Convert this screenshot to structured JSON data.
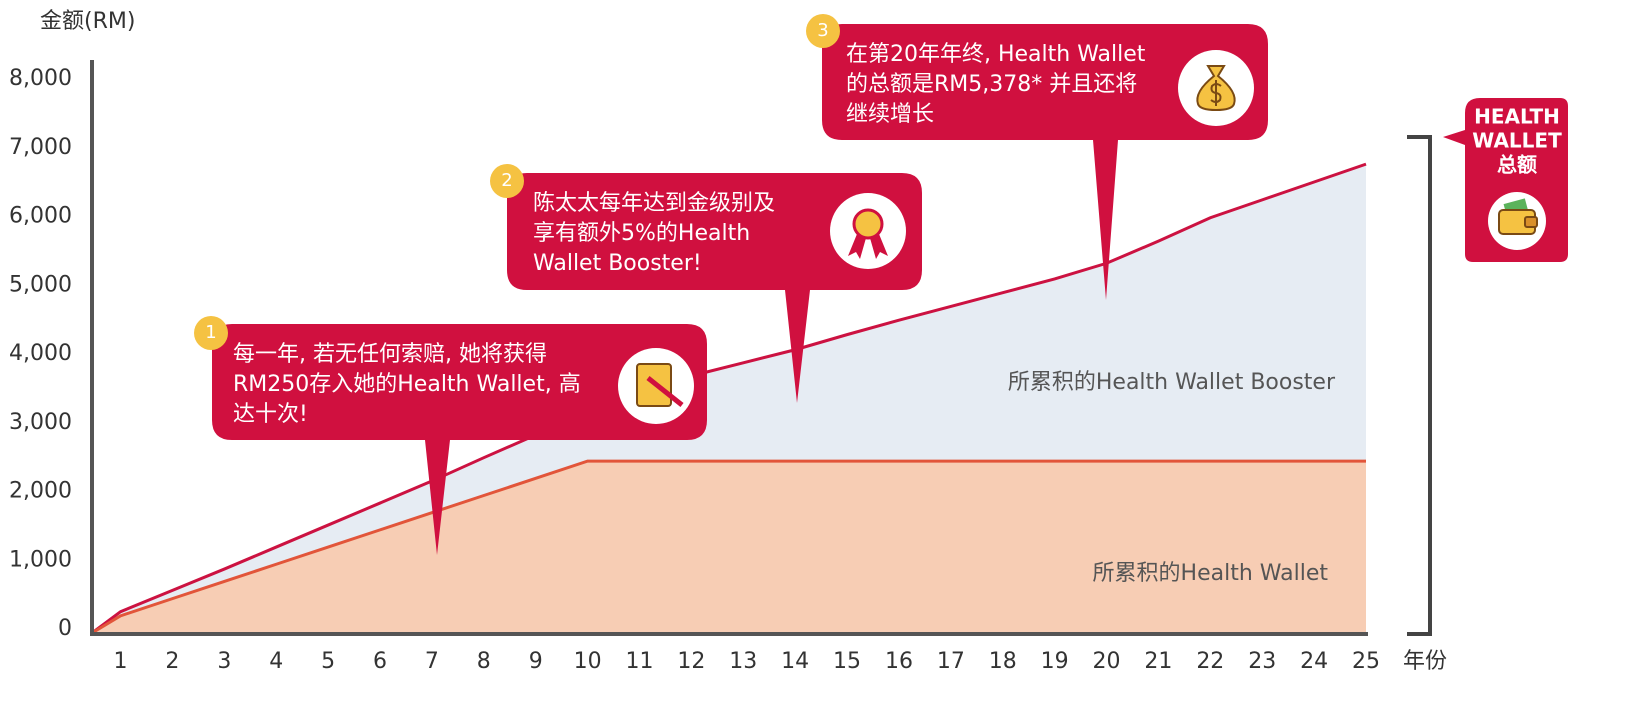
{
  "chart_data": {
    "type": "area",
    "y_label": "金额(RM)",
    "x_label": "年份",
    "xlim": [
      0.45,
      25
    ],
    "xticks": [
      1,
      2,
      3,
      4,
      5,
      6,
      7,
      8,
      9,
      10,
      11,
      12,
      13,
      14,
      15,
      16,
      17,
      18,
      19,
      20,
      21,
      22,
      23,
      24,
      25
    ],
    "ylim": [
      0,
      8000
    ],
    "yticks": [
      0,
      {
        "value": 1000,
        "label": "1,000"
      },
      {
        "value": 2000,
        "label": "2,000"
      },
      {
        "value": 3000,
        "label": "3,000"
      },
      {
        "value": 4000,
        "label": "4,000"
      },
      {
        "value": 5000,
        "label": "5,000"
      },
      {
        "value": 6000,
        "label": "6,000"
      },
      {
        "value": 7000,
        "label": "7,000"
      },
      {
        "value": 8000,
        "label": "8,000"
      }
    ],
    "x": [
      0.45,
      1,
      2,
      3,
      4,
      5,
      6,
      7,
      8,
      9,
      10,
      11,
      12,
      13,
      14,
      15,
      16,
      17,
      18,
      19,
      20,
      21,
      22,
      23,
      24,
      25
    ],
    "series": [
      {
        "name": "所累积的Health Wallet Booster",
        "color": "#cc1241",
        "fill": "#e6ecf3",
        "values": [
          0,
          310,
          620,
          930,
          1250,
          1570,
          1890,
          2210,
          2550,
          2880,
          3210,
          3480,
          3740,
          3930,
          4120,
          4340,
          4550,
          4750,
          4950,
          5150,
          5378,
          5700,
          6040,
          6300,
          6560,
          6820
        ]
      },
      {
        "name": "所累积的Health Wallet",
        "color": "#e2553a",
        "fill": "#f7cdb4",
        "values": [
          0,
          250,
          500,
          750,
          1000,
          1250,
          1500,
          1750,
          2000,
          2250,
          2500,
          2500,
          2500,
          2500,
          2500,
          2500,
          2500,
          2500,
          2500,
          2500,
          2500,
          2500,
          2500,
          2500,
          2500,
          2500
        ]
      }
    ],
    "annotations": [
      {
        "number": "1",
        "lines": [
          "每一年, 若无任何索赔, 她将获得",
          "RM250存入她的Health Wallet, 高",
          "达十次!"
        ]
      },
      {
        "number": "2",
        "lines": [
          "陈太太每年达到金级别及",
          "享有额外5%的Health",
          "Wallet Booster!"
        ]
      },
      {
        "number": "3",
        "lines": [
          "在第20年年终, Health Wallet",
          "的总额是RM5,378* 并且还将",
          "继续增长"
        ]
      }
    ],
    "total_label": [
      "HEALTH",
      "WALLET",
      "总额"
    ]
  }
}
